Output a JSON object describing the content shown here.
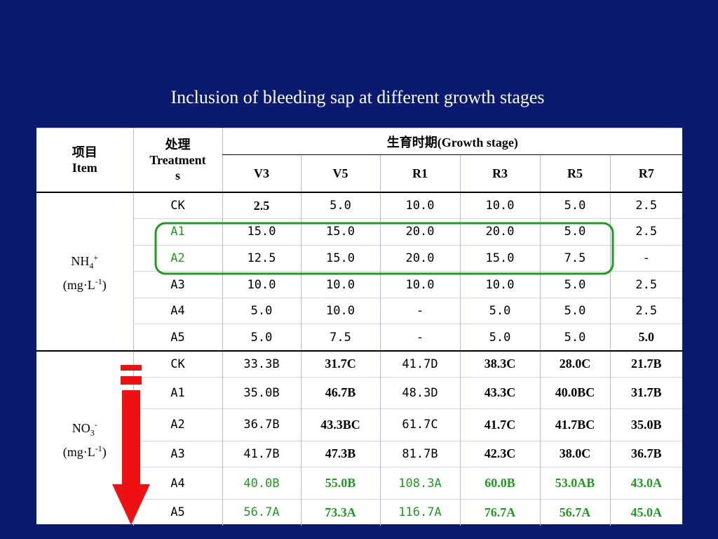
{
  "title": "Inclusion of bleeding sap at different growth stages",
  "header": {
    "item_cn": "项目",
    "item_en": "Item",
    "treatment_cn": "处理",
    "treatment_en_1": "Treatment",
    "treatment_en_2": "s",
    "growth_stage": "生育时期(Growth stage)",
    "stages": [
      "V3",
      "V5",
      "R1",
      "R3",
      "R5",
      "R7"
    ]
  },
  "nh4": {
    "label_base": "NH",
    "label_sub": "4",
    "label_sup": "+",
    "unit_pre": "(mg·L",
    "unit_sup": "-1",
    "unit_post": ")",
    "rows": [
      {
        "treatment": "CK",
        "values": [
          "2.5",
          "5.0",
          "10.0",
          "10.0",
          "5.0",
          "2.5"
        ]
      },
      {
        "treatment": "A1",
        "values": [
          "15.0",
          "15.0",
          "20.0",
          "20.0",
          "5.0",
          "2.5"
        ]
      },
      {
        "treatment": "A2",
        "values": [
          "12.5",
          "15.0",
          "20.0",
          "15.0",
          "7.5",
          "-"
        ]
      },
      {
        "treatment": "A3",
        "values": [
          "10.0",
          "10.0",
          "10.0",
          "10.0",
          "5.0",
          "2.5"
        ]
      },
      {
        "treatment": "A4",
        "values": [
          "5.0",
          "10.0",
          "-",
          "5.0",
          "5.0",
          "2.5"
        ]
      },
      {
        "treatment": "A5",
        "values": [
          "5.0",
          "7.5",
          "-",
          "5.0",
          "5.0",
          "5.0"
        ]
      }
    ]
  },
  "no3": {
    "label_base": "NO",
    "label_sub": "3",
    "label_sup": "-",
    "unit_pre": "(mg·L",
    "unit_sup": "-1",
    "unit_post": ")",
    "rows": [
      {
        "treatment": "CK",
        "values": [
          "33.3B",
          "31.7C",
          "41.7D",
          "38.3C",
          "28.0C",
          "21.7B"
        ]
      },
      {
        "treatment": "A1",
        "values": [
          "35.0B",
          "46.7B",
          "48.3D",
          "43.3C",
          "40.0BC",
          "31.7B"
        ]
      },
      {
        "treatment": "A2",
        "values": [
          "36.7B",
          "43.3BC",
          "61.7C",
          "41.7C",
          "41.7BC",
          "35.0B"
        ]
      },
      {
        "treatment": "A3",
        "values": [
          "41.7B",
          "47.3B",
          "81.7B",
          "42.3C",
          "38.0C",
          "36.7B"
        ]
      },
      {
        "treatment": "A4",
        "values": [
          "40.0B",
          "55.0B",
          "108.3A",
          "60.0B",
          "53.0AB",
          "43.0A"
        ]
      },
      {
        "treatment": "A5",
        "values": [
          "56.7A",
          "73.3A",
          "116.7A",
          "76.7A",
          "56.7A",
          "45.0A"
        ]
      }
    ]
  },
  "colors": {
    "background": "#0a1a6e",
    "highlight_green": "#1f9b1f",
    "arrow_red": "#ee1111"
  }
}
